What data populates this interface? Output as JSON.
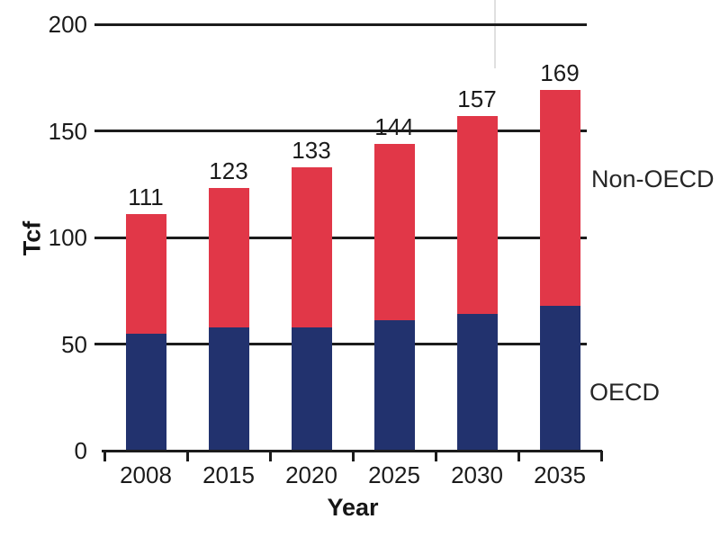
{
  "figure": {
    "ylabel": "Tcf",
    "xlabel": "Year",
    "series_label_top": "Non-OECD",
    "series_label_bottom": "OECD"
  },
  "colors": {
    "oecd_blue": "#22326E",
    "non_oecd_red": "#E13748",
    "axis": "#1c1c1c",
    "text": "#1b1b1b",
    "background": "#ffffff"
  },
  "chart_data": {
    "type": "bar",
    "subtype": "stacked",
    "title": "",
    "xlabel": "Year",
    "ylabel": "Tcf",
    "categories": [
      "2008",
      "2015",
      "2020",
      "2025",
      "2030",
      "2035"
    ],
    "series": [
      {
        "name": "OECD",
        "color": "#22326E",
        "values": [
          55,
          58,
          58,
          61,
          64,
          68
        ]
      },
      {
        "name": "Non-OECD",
        "color": "#E13748",
        "values": [
          56,
          65,
          75,
          83,
          93,
          101
        ]
      }
    ],
    "totals": [
      111,
      123,
      133,
      144,
      157,
      169
    ],
    "total_labels_shown": true,
    "ylim": [
      0,
      200
    ],
    "yticks": [
      0,
      50,
      100,
      150,
      200
    ],
    "grid": "horizontal-solid-black",
    "legend": "inline-labels-right-of-last-bar"
  }
}
